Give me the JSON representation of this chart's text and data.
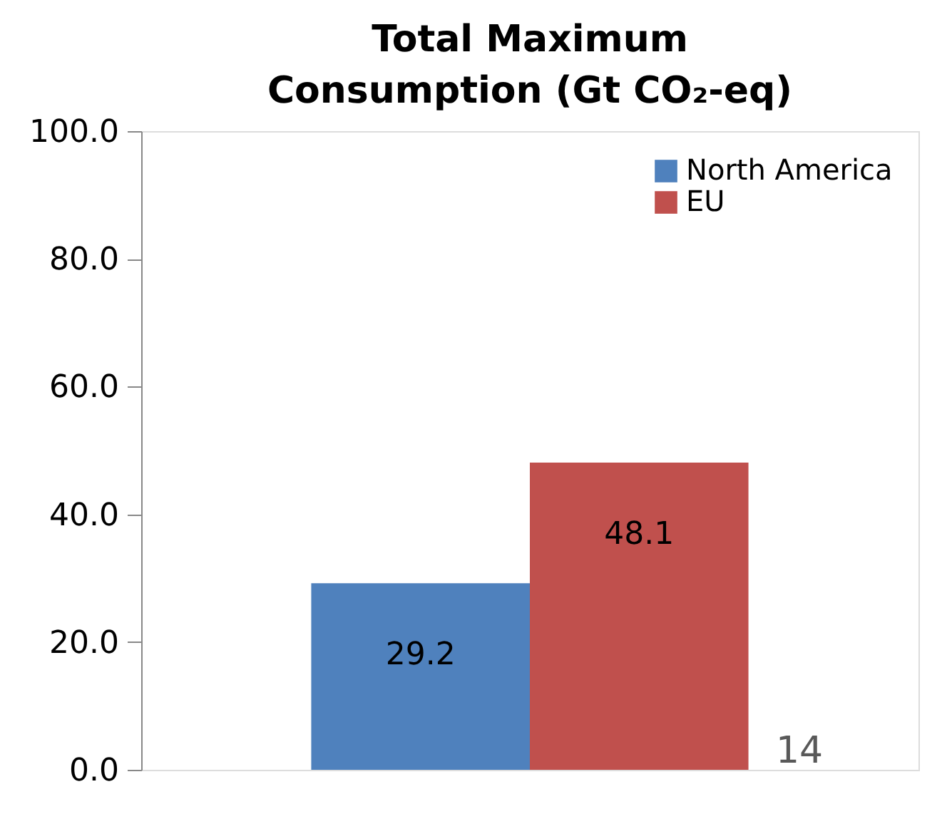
{
  "chart_data": {
    "type": "bar",
    "title": "Total Maximum Consumption (Gt CO₂-eq)",
    "categories": [
      null
    ],
    "series": [
      {
        "name": "North America",
        "color": "#4f81bd",
        "values": [
          29.2
        ]
      },
      {
        "name": "EU",
        "color": "#c0504d",
        "values": [
          48.1
        ]
      }
    ],
    "ylim": [
      0,
      100
    ],
    "yticks": [
      {
        "value": 0,
        "label": "0.0"
      },
      {
        "value": 20,
        "label": "20.0"
      },
      {
        "value": 40,
        "label": "40.0"
      },
      {
        "value": 60,
        "label": "60.0"
      },
      {
        "value": 80,
        "label": "80.0"
      },
      {
        "value": 100,
        "label": "100.0"
      }
    ],
    "data_labels": true,
    "legend": "top right",
    "tick_labels": "y",
    "grid": false,
    "annotations": [
      "14"
    ]
  }
}
